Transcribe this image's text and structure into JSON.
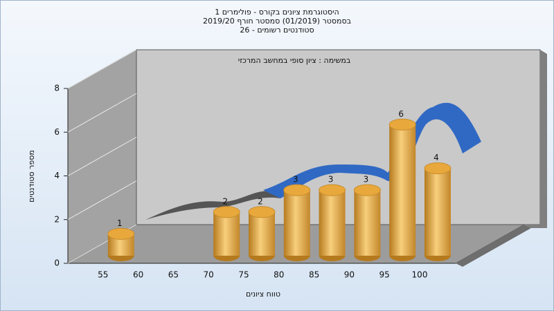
{
  "chart_data": {
    "type": "bar3d",
    "title": [
      "היסטוגרמת ציונים בקורס - פולימרים 1",
      "בסמסטר  (01/2019)  סמסטר חורף 2019/20",
      "סטודנטים רשומים - 26"
    ],
    "annotation": "במשימה : ציון סופי במחשב המרכזי",
    "x_label": "טווח ציונים",
    "y_label": "מספר סטודנטים",
    "categories": [
      "55",
      "60",
      "65",
      "70",
      "75",
      "80",
      "85",
      "90",
      "95",
      "100"
    ],
    "values": [
      1,
      0,
      0,
      2,
      2,
      3,
      3,
      3,
      6,
      4
    ],
    "value_labels": [
      "1",
      null,
      null,
      "2",
      "2",
      "3",
      "3",
      "3",
      "6",
      "4"
    ],
    "color": "#e8a83c",
    "ylim": [
      0,
      8
    ],
    "yticks": [
      0,
      2,
      4,
      6,
      8
    ],
    "grid": true
  }
}
